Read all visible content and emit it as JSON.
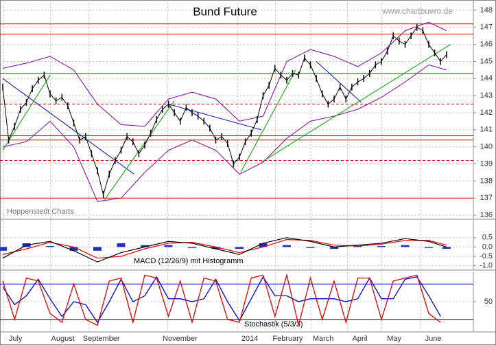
{
  "chart_data": [
    {
      "type": "price",
      "title": "Bund Future",
      "source": "www.chartbuero.de",
      "credit": "Hoppenstedt Charts",
      "xlim": [
        0,
        80
      ],
      "xticks": [
        {
          "value": 1,
          "label": "July"
        },
        {
          "value": 9,
          "label": "August"
        },
        {
          "value": 15.5,
          "label": "September"
        },
        {
          "value": 28.8,
          "label": "November"
        },
        {
          "value": 40.6,
          "label": "2014"
        },
        {
          "value": 47,
          "label": "February"
        },
        {
          "value": 53,
          "label": "March"
        },
        {
          "value": 59.2,
          "label": "April"
        },
        {
          "value": 65,
          "label": "May"
        },
        {
          "value": 71.6,
          "label": "June"
        }
      ],
      "ylim": [
        135.8,
        148.6
      ],
      "yticks": [
        136,
        137,
        138,
        139,
        140,
        141,
        142,
        143,
        144,
        145,
        146,
        147,
        148
      ],
      "grid": true,
      "series": [
        {
          "name": "Bund Future",
          "color": "#000000",
          "values": [
            143.5,
            140.4,
            141.2,
            142.2,
            142.6,
            143.4,
            143.9,
            144.2,
            143.1,
            142.7,
            142.9,
            142.4,
            141.4,
            140.4,
            140.6,
            139.6,
            138.6,
            137.2,
            138.4,
            139.2,
            139.8,
            140.6,
            140.3,
            139.6,
            140.1,
            140.8,
            141.6,
            142.2,
            142.5,
            142.0,
            141.5,
            142.3,
            142.0,
            141.8,
            141.5,
            141.1,
            140.4,
            140.6,
            140.2,
            139.0,
            139.4,
            140.3,
            140.8,
            141.6,
            143.0,
            143.6,
            144.6,
            144.2,
            143.9,
            144.3,
            144.2,
            145.2,
            144.8,
            144.0,
            143.1,
            142.5,
            142.8,
            143.5,
            142.8,
            143.5,
            143.8,
            144.0,
            144.3,
            144.8,
            145.0,
            145.6,
            146.5,
            146.2,
            146.0,
            146.5,
            147.0,
            146.8,
            146.0,
            145.5,
            145.0,
            145.4
          ]
        }
      ],
      "bands": {
        "color": "#8000a0",
        "x": [
          0,
          4,
          8,
          12,
          16,
          20,
          24,
          28,
          32,
          36,
          40,
          44,
          48,
          52,
          56,
          60,
          64,
          68,
          72,
          75
        ],
        "upper": [
          144.6,
          144.9,
          145.3,
          144.5,
          142.5,
          141.3,
          141.2,
          142.8,
          143.2,
          142.8,
          141.5,
          141.8,
          145.0,
          145.7,
          145.3,
          144.7,
          145.5,
          146.8,
          147.3,
          146.8
        ],
        "lower": [
          140.0,
          140.3,
          141.5,
          140.0,
          136.8,
          137.0,
          138.5,
          139.8,
          140.4,
          139.8,
          138.4,
          139.1,
          140.5,
          141.5,
          141.8,
          142.2,
          142.9,
          143.8,
          144.8,
          144.5
        ]
      },
      "levels": [
        {
          "value": 147.2,
          "dashed": false
        },
        {
          "value": 146.6,
          "dashed": false
        },
        {
          "value": 144.3,
          "dashed": false
        },
        {
          "value": 142.5,
          "dashed": true
        },
        {
          "value": 140.65,
          "dashed": false
        },
        {
          "value": 140.4,
          "dashed": false
        },
        {
          "value": 139.2,
          "dashed": true
        },
        {
          "value": 137,
          "dashed": false
        }
      ],
      "level_color": "#e00000",
      "trendlines": [
        {
          "color": "#0000cc",
          "x": [
            0,
            22.2
          ],
          "y": [
            144.0,
            138.4
          ]
        },
        {
          "color": "#0000cc",
          "x": [
            28,
            43.7
          ],
          "y": [
            142.5,
            141.0
          ]
        },
        {
          "color": "#0000cc",
          "x": [
            53,
            60.6
          ],
          "y": [
            145.0,
            142.6
          ]
        },
        {
          "color": "#00a000",
          "x": [
            0,
            8
          ],
          "y": [
            139.8,
            144.2
          ]
        },
        {
          "color": "#00a000",
          "x": [
            17,
            29
          ],
          "y": [
            136.8,
            142.7
          ]
        },
        {
          "color": "#00a000",
          "x": [
            40.2,
            49.5
          ],
          "y": [
            138.5,
            144.5
          ]
        },
        {
          "color": "#00a000",
          "x": [
            43.7,
            75.7
          ],
          "y": [
            139.1,
            146.0
          ]
        }
      ]
    },
    {
      "type": "macd",
      "label": "MACD (12/26/9) mit Histogramm",
      "xlim": [
        0,
        80
      ],
      "ylim": [
        -1.2,
        1.45
      ],
      "yticks": [
        0.5,
        {
          "value": 0,
          "label": "0.0"
        },
        -0.5,
        {
          "value": -1,
          "label": "-1.0"
        }
      ],
      "x": [
        0,
        4,
        8,
        12,
        16,
        20,
        24,
        28,
        32,
        36,
        40,
        44,
        48,
        52,
        56,
        60,
        64,
        68,
        72,
        75
      ],
      "series": [
        {
          "name": "MACD",
          "color": "#000000",
          "values": [
            -0.6,
            0.1,
            0.3,
            -0.2,
            -0.8,
            -0.3,
            0.0,
            0.3,
            0.2,
            -0.1,
            -0.4,
            0.2,
            0.5,
            0.3,
            0.0,
            0.1,
            0.2,
            0.45,
            0.3,
            0.0
          ]
        },
        {
          "name": "Signal",
          "color": "#e00000",
          "values": [
            -0.4,
            -0.1,
            0.25,
            0.0,
            -0.6,
            -0.5,
            -0.1,
            0.2,
            0.25,
            0.0,
            -0.3,
            0.0,
            0.4,
            0.35,
            0.1,
            0.05,
            0.15,
            0.35,
            0.35,
            0.1
          ]
        },
        {
          "name": "Histogramm",
          "color": "#2030c0",
          "values": [
            -0.2,
            0.2,
            0.05,
            -0.2,
            -0.2,
            0.2,
            0.1,
            0.1,
            -0.05,
            -0.1,
            -0.1,
            0.2,
            0.1,
            -0.05,
            -0.1,
            0.05,
            0.05,
            0.1,
            -0.05,
            -0.1
          ]
        }
      ]
    },
    {
      "type": "stochastic",
      "label": "Stochastik (5/3/3)",
      "xlim": [
        0,
        80
      ],
      "ylim": [
        0,
        100
      ],
      "yticks": [
        50
      ],
      "levels": [
        80,
        20
      ],
      "level_color": "#0000cc",
      "x": [
        0,
        2,
        4,
        6,
        8,
        10,
        12,
        14,
        16,
        18,
        20,
        22,
        24,
        26,
        28,
        30,
        32,
        34,
        36,
        38,
        40,
        42,
        44,
        46,
        48,
        50,
        52,
        54,
        56,
        58,
        60,
        62,
        64,
        66,
        68,
        70,
        72,
        74
      ],
      "series": [
        {
          "name": "%K",
          "color": "#e00000",
          "values": [
            85,
            20,
            90,
            85,
            30,
            15,
            80,
            20,
            10,
            85,
            90,
            15,
            95,
            90,
            25,
            85,
            15,
            90,
            85,
            20,
            15,
            90,
            95,
            25,
            95,
            10,
            90,
            20,
            85,
            15,
            90,
            90,
            20,
            85,
            90,
            95,
            30,
            15
          ]
        },
        {
          "name": "%D",
          "color": "#0000cc",
          "values": [
            75,
            45,
            60,
            88,
            55,
            25,
            50,
            45,
            15,
            50,
            88,
            50,
            60,
            92,
            55,
            55,
            50,
            55,
            88,
            50,
            18,
            55,
            92,
            60,
            60,
            50,
            55,
            55,
            55,
            50,
            55,
            90,
            55,
            55,
            88,
            92,
            60,
            25
          ]
        }
      ]
    }
  ]
}
